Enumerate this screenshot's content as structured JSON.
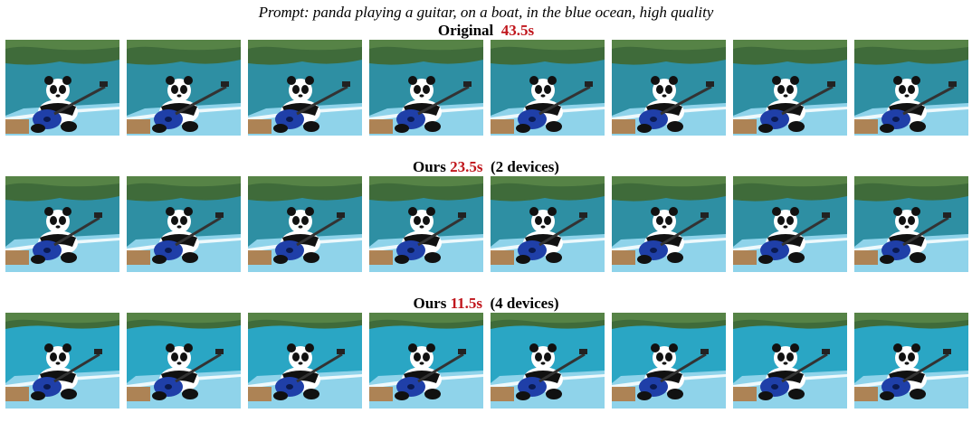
{
  "prompt": "Prompt: panda playing a guitar, on a boat, in the blue ocean, high quality",
  "rows": [
    {
      "label": "Original",
      "time": "43.5s",
      "suffix": "",
      "frames": 8,
      "variant": "original"
    },
    {
      "label": "Ours",
      "time": "23.5s",
      "suffix": "(2 devices)",
      "frames": 8,
      "variant": "two-devices"
    },
    {
      "label": "Ours",
      "time": "11.5s",
      "suffix": "(4 devices)",
      "frames": 8,
      "variant": "four-devices"
    }
  ],
  "palette": {
    "accent_time": "#c0161c",
    "sea": "#2e8fa3",
    "cliff": "#3f6b3a",
    "deck": "#8fd3ea",
    "guitar_body": "#1f3fa8",
    "wood": "#b07a45"
  }
}
